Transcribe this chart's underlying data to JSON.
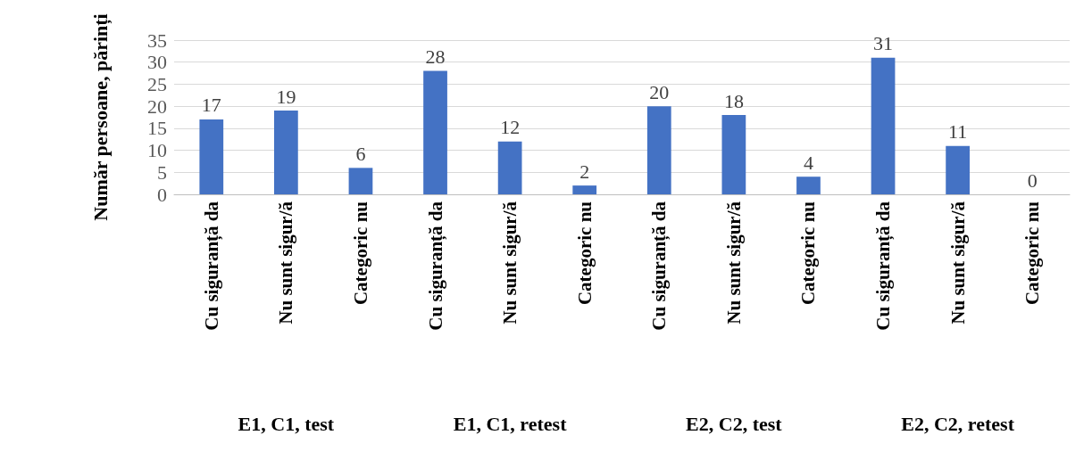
{
  "chart_data": {
    "type": "bar",
    "ylabel": "Număr persoane, părinți",
    "categories": [
      "Cu siguranță da",
      "Nu sunt sigur/ă",
      "Categoric nu",
      "Cu siguranță da",
      "Nu sunt sigur/ă",
      "Categoric nu",
      "Cu siguranță da",
      "Nu sunt sigur/ă",
      "Categoric nu",
      "Cu siguranță da",
      "Nu sunt sigur/ă",
      "Categoric nu"
    ],
    "values": [
      17,
      19,
      6,
      28,
      12,
      2,
      20,
      18,
      4,
      31,
      11,
      0
    ],
    "color": "#4472c4",
    "ylim": [
      0,
      35
    ],
    "yticks": [
      0,
      5,
      10,
      15,
      20,
      25,
      30,
      35
    ],
    "grid": "y",
    "data_labels": true,
    "annotations": [
      "E1, C1, test",
      "E1, C1, retest",
      "E2, C2, test",
      "E2, C2, retest"
    ]
  }
}
